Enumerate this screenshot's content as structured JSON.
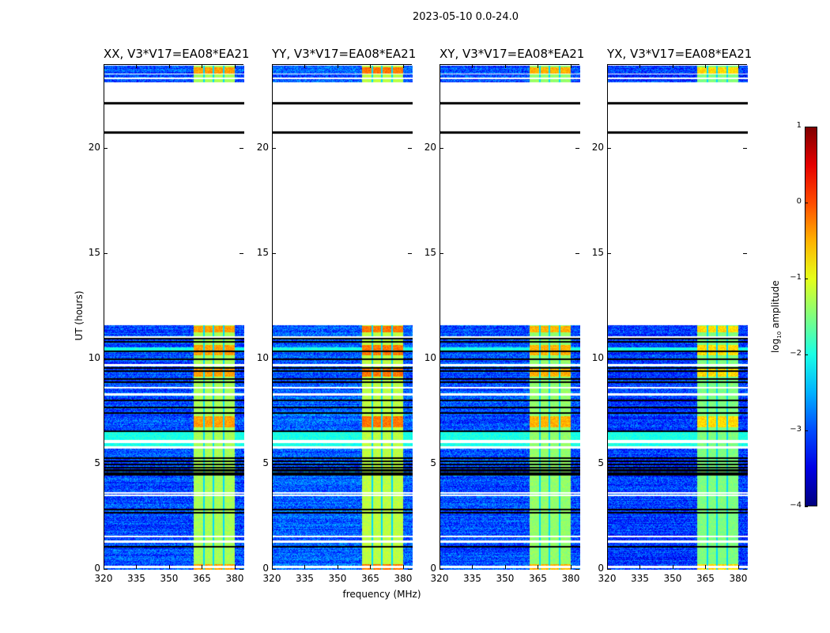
{
  "chart_data": {
    "type": "heatmap",
    "title": "2023-05-10 0.0-24.0",
    "xlabel": "frequency (MHz)",
    "ylabel": "UT (hours)",
    "xlim": [
      320,
      384
    ],
    "ylim": [
      0,
      24
    ],
    "xticks": [
      "320",
      "335",
      "350",
      "365",
      "380"
    ],
    "xtick_values": [
      320,
      335,
      350,
      365,
      380
    ],
    "yticks": [
      "0",
      "5",
      "10",
      "15",
      "20"
    ],
    "ytick_values": [
      0,
      5,
      10,
      15,
      20
    ],
    "colorbar": {
      "label_main": "log",
      "label_sub": "10",
      "label_rest": " amplitude",
      "range": [
        -4,
        1
      ],
      "ticks": [
        "1",
        "0",
        "−1",
        "−2",
        "−3",
        "−4"
      ],
      "tick_values": [
        1,
        0,
        -1,
        -2,
        -3,
        -4
      ],
      "colormap": "jet"
    },
    "panels": [
      {
        "title": "XX, V3*V17=EA08*EA21",
        "background": -3.0,
        "band": -1.3,
        "hot": -0.4
      },
      {
        "title": "YY, V3*V17=EA08*EA21",
        "background": -2.9,
        "band": -1.2,
        "hot": -0.2
      },
      {
        "title": "XY, V3*V17=EA08*EA21",
        "background": -3.0,
        "band": -1.4,
        "hot": -0.5
      },
      {
        "title": "YX, V3*V17=EA08*EA21",
        "background": -3.1,
        "band": -1.5,
        "hot": -0.7
      }
    ],
    "band_MHz": [
      360.5,
      379.5
    ],
    "band_dark_channels_MHz": [
      365.3,
      369.8,
      374.3
    ],
    "data_ranges_hours": [
      [
        0,
        11.65
      ],
      [
        23.2,
        24
      ]
    ],
    "blank_gaps_hours": [
      [
        0.1,
        0.2
      ],
      [
        1.3,
        1.42
      ],
      [
        1.55,
        1.65
      ],
      [
        3.5,
        3.58
      ],
      [
        3.62,
        3.7
      ],
      [
        5.78,
        5.87
      ],
      [
        6.05,
        6.2
      ],
      [
        8.3,
        8.4
      ],
      [
        8.65,
        8.72
      ],
      [
        9.7,
        9.8
      ],
      [
        11.05,
        11.13
      ],
      [
        23.33,
        23.4
      ],
      [
        23.55,
        23.6
      ]
    ],
    "flag_lines_hours": [
      1.1,
      2.7,
      2.85,
      4.5,
      4.6,
      4.7,
      4.75,
      4.85,
      5.0,
      5.15,
      5.3,
      6.6,
      7.45,
      7.7,
      8.05,
      8.9,
      9.05,
      9.45,
      9.6,
      10.0,
      10.4,
      10.85,
      11.0,
      20.8,
      22.2
    ],
    "hot_ranges_hours": [
      [
        0,
        0.3
      ],
      [
        6.8,
        7.3
      ],
      [
        9.2,
        9.6
      ],
      [
        10.2,
        10.7
      ],
      [
        11.3,
        11.6
      ],
      [
        23.6,
        23.9
      ]
    ],
    "bright_background_hours": [
      [
        5.87,
        6.05
      ],
      [
        6.2,
        6.6
      ],
      [
        10.45,
        10.6
      ]
    ]
  }
}
